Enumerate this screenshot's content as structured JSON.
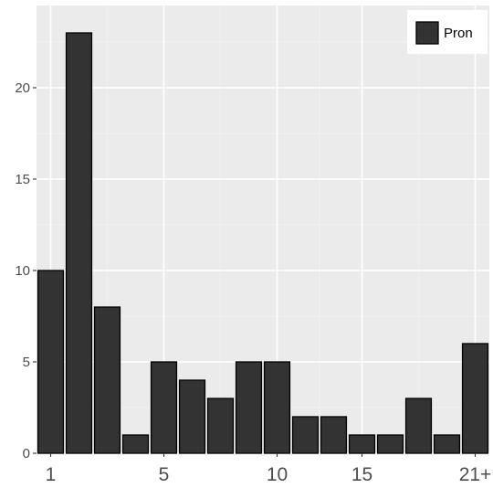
{
  "chart_data": {
    "type": "bar",
    "x": [
      1,
      2,
      3,
      4,
      5,
      6,
      7,
      8,
      9,
      10,
      11,
      12,
      13,
      14,
      15,
      16
    ],
    "series": [
      {
        "name": "Pron",
        "values": [
          10,
          23,
          8,
          1,
          5,
          4,
          3,
          5,
          5,
          2,
          2,
          1,
          1,
          3,
          1,
          6
        ]
      }
    ],
    "xtick_labels": [
      {
        "at": 1,
        "label": "1"
      },
      {
        "at": 5,
        "label": "5"
      },
      {
        "at": 9,
        "label": "10"
      },
      {
        "at": 12,
        "label": "15"
      },
      {
        "at": 16,
        "label": "21+"
      }
    ],
    "yticks": [
      0,
      5,
      10,
      15,
      20
    ],
    "ylim": [
      0,
      24
    ],
    "grid": true,
    "legend_position": "top-right",
    "title": "",
    "xlabel": "",
    "ylabel": "",
    "colors": {
      "panel_bg": "#ebebeb",
      "grid_major": "#ffffff",
      "grid_minor": "#f2f2f2",
      "bar_fill": "#333333",
      "bar_stroke": "#000000",
      "tick_text": "#4d4d4d",
      "legend_bg": "#ffffff"
    }
  }
}
